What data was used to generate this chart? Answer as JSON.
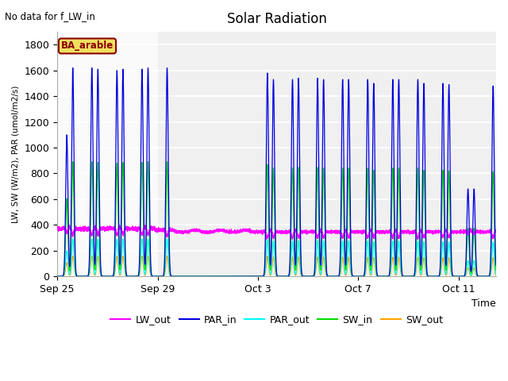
{
  "title": "Solar Radiation",
  "top_left_text": "No data for f_LW_in",
  "ylabel": "LW, SW (W/m2), PAR (umol/m2/s)",
  "xlabel": "Time",
  "box_label": "BA_arable",
  "ylim": [
    0,
    1900
  ],
  "yticks": [
    0,
    200,
    400,
    600,
    800,
    1000,
    1200,
    1400,
    1600,
    1800
  ],
  "series": {
    "LW_out": {
      "color": "#ff00ff",
      "lw": 0.8
    },
    "PAR_in": {
      "color": "#0000dd",
      "lw": 0.9
    },
    "PAR_out": {
      "color": "#00ffff",
      "lw": 0.9
    },
    "SW_in": {
      "color": "#00dd00",
      "lw": 0.9
    },
    "SW_out": {
      "color": "#ffa500",
      "lw": 0.9
    }
  },
  "xtick_labels": [
    "Sep 25",
    "Sep 29",
    "Oct 3",
    "Oct 7",
    "Oct 11"
  ],
  "xtick_positions": [
    0,
    4,
    8,
    12,
    16
  ],
  "xlim": [
    0,
    17.5
  ],
  "figsize": [
    6.4,
    4.8
  ],
  "dpi": 100,
  "plot_bg": "#e8e8e8",
  "white_strip_end": 4.0,
  "grey_strip_start": 4.0
}
